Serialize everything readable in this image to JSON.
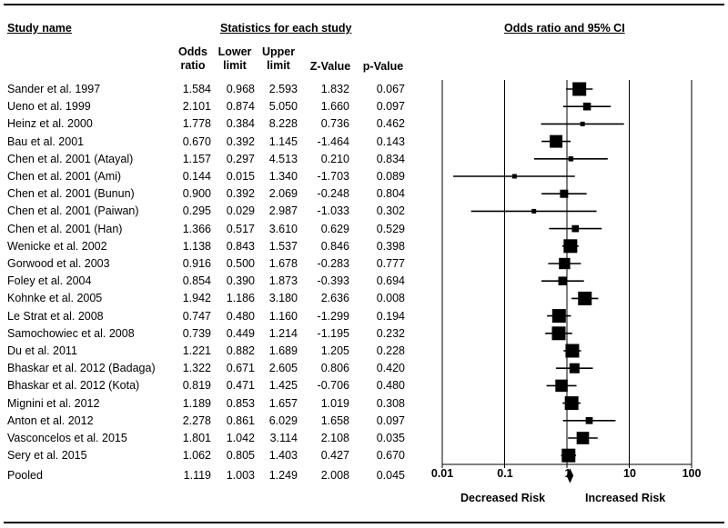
{
  "headers": {
    "study_name": "Study name",
    "statistics": "Statistics for each study",
    "forest": "Odds ratio and 95% CI"
  },
  "columns": {
    "odds": [
      "Odds",
      "ratio"
    ],
    "lower": [
      "Lower",
      "limit"
    ],
    "upper": [
      "Upper",
      "limit"
    ],
    "z": "Z-Value",
    "p": "p-Value"
  },
  "rows": [
    {
      "name": "Sander et al. 1997",
      "or": "1.584",
      "ll": "0.968",
      "ul": "2.593",
      "z": "1.832",
      "p": "0.067"
    },
    {
      "name": "Ueno et al. 1999",
      "or": "2.101",
      "ll": "0.874",
      "ul": "5.050",
      "z": "1.660",
      "p": "0.097"
    },
    {
      "name": "Heinz et al. 2000",
      "or": "1.778",
      "ll": "0.384",
      "ul": "8.228",
      "z": "0.736",
      "p": "0.462"
    },
    {
      "name": "Bau et al. 2001",
      "or": "0.670",
      "ll": "0.392",
      "ul": "1.145",
      "z": "-1.464",
      "p": "0.143"
    },
    {
      "name": "Chen et al. 2001 (Atayal)",
      "or": "1.157",
      "ll": "0.297",
      "ul": "4.513",
      "z": "0.210",
      "p": "0.834"
    },
    {
      "name": "Chen et al. 2001 (Ami)",
      "or": "0.144",
      "ll": "0.015",
      "ul": "1.340",
      "z": "-1.703",
      "p": "0.089"
    },
    {
      "name": "Chen et al. 2001 (Bunun)",
      "or": "0.900",
      "ll": "0.392",
      "ul": "2.069",
      "z": "-0.248",
      "p": "0.804"
    },
    {
      "name": "Chen et al. 2001 (Paiwan)",
      "or": "0.295",
      "ll": "0.029",
      "ul": "2.987",
      "z": "-1.033",
      "p": "0.302"
    },
    {
      "name": "Chen et al. 2001 (Han)",
      "or": "1.366",
      "ll": "0.517",
      "ul": "3.610",
      "z": "0.629",
      "p": "0.529"
    },
    {
      "name": "Wenicke et al. 2002",
      "or": "1.138",
      "ll": "0.843",
      "ul": "1.537",
      "z": "0.846",
      "p": "0.398"
    },
    {
      "name": "Gorwood et al. 2003",
      "or": "0.916",
      "ll": "0.500",
      "ul": "1.678",
      "z": "-0.283",
      "p": "0.777"
    },
    {
      "name": "Foley et al. 2004",
      "or": "0.854",
      "ll": "0.390",
      "ul": "1.873",
      "z": "-0.393",
      "p": "0.694"
    },
    {
      "name": "Kohnke et al. 2005",
      "or": "1.942",
      "ll": "1.186",
      "ul": "3.180",
      "z": "2.636",
      "p": "0.008"
    },
    {
      "name": "Le Strat et al. 2008",
      "or": "0.747",
      "ll": "0.480",
      "ul": "1.160",
      "z": "-1.299",
      "p": "0.194"
    },
    {
      "name": "Samochowiec et al. 2008",
      "or": "0.739",
      "ll": "0.449",
      "ul": "1.214",
      "z": "-1.195",
      "p": "0.232"
    },
    {
      "name": "Du et al. 2011",
      "or": "1.221",
      "ll": "0.882",
      "ul": "1.689",
      "z": "1.205",
      "p": "0.228"
    },
    {
      "name": "Bhaskar et al. 2012 (Badaga)",
      "or": "1.322",
      "ll": "0.671",
      "ul": "2.605",
      "z": "0.806",
      "p": "0.420"
    },
    {
      "name": "Bhaskar et al. 2012 (Kota)",
      "or": "0.819",
      "ll": "0.471",
      "ul": "1.425",
      "z": "-0.706",
      "p": "0.480"
    },
    {
      "name": "Mignini et al. 2012",
      "or": "1.189",
      "ll": "0.853",
      "ul": "1.657",
      "z": "1.019",
      "p": "0.308"
    },
    {
      "name": "Anton et al. 2012",
      "or": "2.278",
      "ll": "0.861",
      "ul": "6.029",
      "z": "1.658",
      "p": "0.097"
    },
    {
      "name": "Vasconcelos et al. 2015",
      "or": "1.801",
      "ll": "1.042",
      "ul": "3.114",
      "z": "2.108",
      "p": "0.035"
    },
    {
      "name": "Sery et al. 2015",
      "or": "1.062",
      "ll": "0.805",
      "ul": "1.403",
      "z": "0.427",
      "p": "0.670"
    },
    {
      "name": "Pooled",
      "or": "1.119",
      "ll": "1.003",
      "ul": "1.249",
      "z": "2.008",
      "p": "0.045"
    }
  ],
  "axis": {
    "ticks": [
      "0.01",
      "0.1",
      "1",
      "10",
      "100"
    ],
    "left_label": "Decreased Risk",
    "right_label": "Increased Risk"
  },
  "chart_data": {
    "type": "forest",
    "title": "Odds ratio and 95% CI",
    "scale": "log",
    "xlim": [
      0.01,
      100
    ],
    "xticks": [
      0.01,
      0.1,
      1,
      10,
      100
    ],
    "reference_line": 1,
    "studies": [
      {
        "name": "Sander et al. 1997",
        "or": 1.584,
        "lower": 0.968,
        "upper": 2.593
      },
      {
        "name": "Ueno et al. 1999",
        "or": 2.101,
        "lower": 0.874,
        "upper": 5.05
      },
      {
        "name": "Heinz et al. 2000",
        "or": 1.778,
        "lower": 0.384,
        "upper": 8.228
      },
      {
        "name": "Bau et al. 2001",
        "or": 0.67,
        "lower": 0.392,
        "upper": 1.145
      },
      {
        "name": "Chen et al. 2001 (Atayal)",
        "or": 1.157,
        "lower": 0.297,
        "upper": 4.513
      },
      {
        "name": "Chen et al. 2001 (Ami)",
        "or": 0.144,
        "lower": 0.015,
        "upper": 1.34
      },
      {
        "name": "Chen et al. 2001 (Bunun)",
        "or": 0.9,
        "lower": 0.392,
        "upper": 2.069
      },
      {
        "name": "Chen et al. 2001 (Paiwan)",
        "or": 0.295,
        "lower": 0.029,
        "upper": 2.987
      },
      {
        "name": "Chen et al. 2001 (Han)",
        "or": 1.366,
        "lower": 0.517,
        "upper": 3.61
      },
      {
        "name": "Wenicke et al. 2002",
        "or": 1.138,
        "lower": 0.843,
        "upper": 1.537
      },
      {
        "name": "Gorwood et al. 2003",
        "or": 0.916,
        "lower": 0.5,
        "upper": 1.678
      },
      {
        "name": "Foley et al. 2004",
        "or": 0.854,
        "lower": 0.39,
        "upper": 1.873
      },
      {
        "name": "Kohnke et al. 2005",
        "or": 1.942,
        "lower": 1.186,
        "upper": 3.18
      },
      {
        "name": "Le Strat et al. 2008",
        "or": 0.747,
        "lower": 0.48,
        "upper": 1.16
      },
      {
        "name": "Samochowiec et al. 2008",
        "or": 0.739,
        "lower": 0.449,
        "upper": 1.214
      },
      {
        "name": "Du et al. 2011",
        "or": 1.221,
        "lower": 0.882,
        "upper": 1.689
      },
      {
        "name": "Bhaskar et al. 2012 (Badaga)",
        "or": 1.322,
        "lower": 0.671,
        "upper": 2.605
      },
      {
        "name": "Bhaskar et al. 2012 (Kota)",
        "or": 0.819,
        "lower": 0.471,
        "upper": 1.425
      },
      {
        "name": "Mignini et al. 2012",
        "or": 1.189,
        "lower": 0.853,
        "upper": 1.657
      },
      {
        "name": "Anton et al. 2012",
        "or": 2.278,
        "lower": 0.861,
        "upper": 6.029
      },
      {
        "name": "Vasconcelos et al. 2015",
        "or": 1.801,
        "lower": 1.042,
        "upper": 3.114
      },
      {
        "name": "Sery et al. 2015",
        "or": 1.062,
        "lower": 0.805,
        "upper": 1.403
      }
    ],
    "pooled": {
      "name": "Pooled",
      "or": 1.119,
      "lower": 1.003,
      "upper": 1.249
    },
    "xlabel_left": "Decreased Risk",
    "xlabel_right": "Increased Risk"
  }
}
